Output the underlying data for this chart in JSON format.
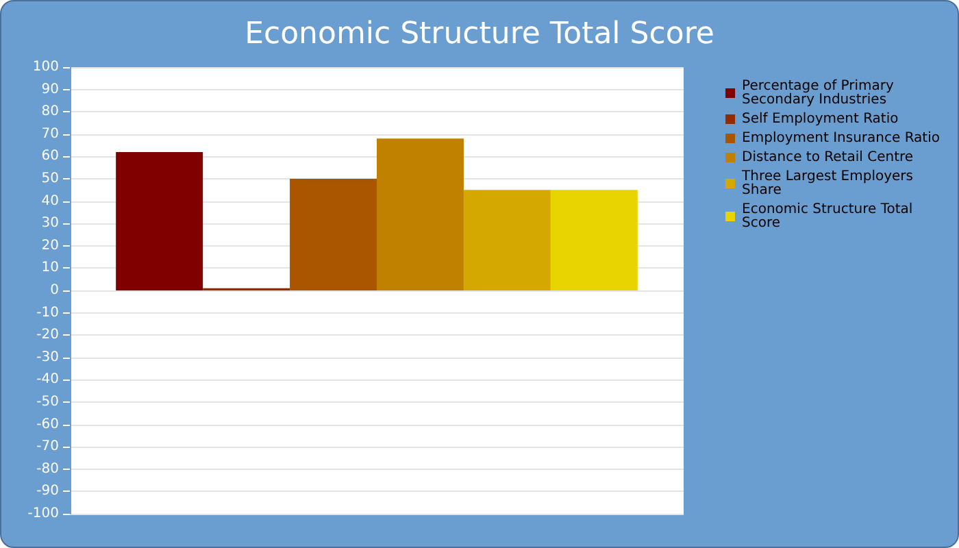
{
  "chart_data": {
    "type": "bar",
    "title": "Economic Structure Total Score",
    "categories": [
      null
    ],
    "series": [
      {
        "name": "Percentage of Primary Secondary Industries",
        "color": "#800000",
        "values": [
          62
        ]
      },
      {
        "name": "Self Employment Ratio",
        "color": "#922b00",
        "values": [
          1
        ]
      },
      {
        "name": "Employment Insurance Ratio",
        "color": "#aa5500",
        "values": [
          50
        ]
      },
      {
        "name": "Distance to Retail Centre",
        "color": "#c08000",
        "values": [
          68
        ]
      },
      {
        "name": "Three Largest Employers Share",
        "color": "#d4a800",
        "values": [
          45
        ]
      },
      {
        "name": "Economic Structure Total Score",
        "color": "#e8d400",
        "values": [
          45
        ]
      }
    ],
    "ylim": [
      -100,
      100
    ],
    "yticks": [
      -100,
      -90,
      -80,
      -70,
      -60,
      -50,
      -40,
      -30,
      -20,
      -10,
      0,
      10,
      20,
      30,
      40,
      50,
      60,
      70,
      80,
      90,
      100
    ],
    "grid": "y",
    "legend": "right"
  }
}
